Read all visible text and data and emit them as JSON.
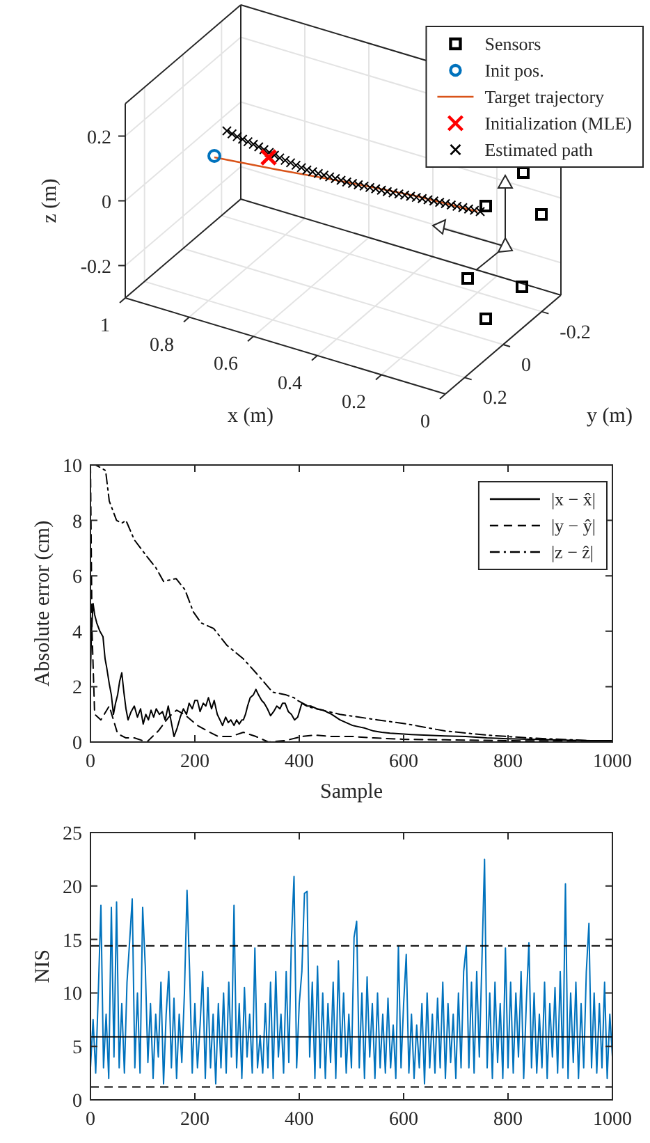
{
  "chart_data": [
    {
      "type": "other",
      "xlabel": "x (m)",
      "ylabel": "z (m)",
      "x2label": "y (m)",
      "legend": "top right",
      "annotations": [
        "1",
        "0.8",
        "0.6",
        "0.4",
        "0.2",
        "0",
        "0.2",
        "0",
        "-0.2",
        "-0.2",
        "0",
        "0.2"
      ],
      "series": [
        {
          "name": "Sensors",
          "color": "#000000",
          "type": "scatter",
          "marker": "square"
        },
        {
          "name": "Init pos.",
          "color": "#0072bd",
          "type": "scatter",
          "marker": "circle"
        },
        {
          "name": "Target trajectory",
          "color": "#d95319",
          "type": "line"
        },
        {
          "name": "Initialization (MLE)",
          "color": "#ff0000",
          "type": "scatter",
          "marker": "cross"
        },
        {
          "name": "Estimated path",
          "color": "#000000",
          "type": "scatter",
          "marker": "cross"
        }
      ]
    },
    {
      "type": "line",
      "xlabel": "Sample",
      "ylabel": "Absolute error (cm)",
      "xlim": [
        0,
        1000
      ],
      "xticks": [
        0,
        200,
        400,
        600,
        800,
        1000
      ],
      "ylim": [
        0,
        10
      ],
      "yticks": [
        0,
        2,
        4,
        6,
        8,
        10
      ],
      "legend": "top right",
      "series": [
        {
          "name": "|x − x̂|",
          "color": "#000000",
          "line_style": "solid",
          "x": [
            0,
            2,
            5,
            8,
            12,
            18,
            24,
            28,
            31,
            36,
            40,
            44,
            48,
            52,
            56,
            60,
            64,
            68,
            72,
            78,
            84,
            90,
            96,
            101,
            106,
            111,
            116,
            121,
            126,
            132,
            138,
            143,
            149,
            155,
            160,
            166,
            172,
            178,
            184,
            189,
            195,
            200,
            205,
            210,
            216,
            221,
            226,
            232,
            237,
            243,
            248,
            253,
            259,
            264,
            269,
            275,
            280,
            285,
            290,
            293,
            297,
            301,
            306,
            312,
            317,
            322,
            328,
            333,
            339,
            345,
            351,
            357,
            363,
            368,
            373,
            379,
            385,
            391,
            397,
            405,
            414,
            422,
            434,
            446,
            462,
            478,
            490,
            502,
            514,
            526,
            542,
            558,
            574,
            590,
            615,
            639,
            679,
            719,
            759,
            799,
            840,
            880,
            920,
            960,
            1000
          ],
          "values": [
            2.5,
            4.0,
            5.0,
            4.6,
            4.3,
            4.0,
            3.8,
            3.0,
            2.7,
            2.1,
            1.7,
            1.0,
            1.4,
            1.7,
            2.2,
            2.5,
            1.8,
            1.2,
            0.8,
            1.1,
            1.3,
            0.9,
            1.2,
            0.65,
            1.0,
            0.8,
            1.15,
            0.9,
            1.2,
            1.0,
            1.1,
            0.8,
            1.3,
            0.7,
            0.2,
            0.5,
            0.9,
            1.2,
            1.0,
            1.4,
            1.2,
            1.5,
            1.5,
            1.1,
            1.4,
            1.3,
            1.6,
            1.2,
            1.5,
            1.0,
            0.8,
            0.6,
            0.9,
            0.7,
            0.8,
            0.6,
            0.8,
            0.65,
            0.8,
            0.8,
            1.0,
            1.3,
            1.6,
            1.7,
            1.9,
            1.7,
            1.5,
            1.4,
            1.2,
            0.95,
            1.1,
            1.3,
            1.2,
            1.4,
            1.4,
            1.1,
            1.0,
            0.8,
            0.9,
            1.4,
            1.3,
            1.3,
            1.2,
            1.15,
            1.0,
            0.8,
            0.7,
            0.6,
            0.55,
            0.5,
            0.4,
            0.35,
            0.32,
            0.3,
            0.27,
            0.25,
            0.22,
            0.2,
            0.15,
            0.12,
            0.1,
            0.08,
            0.06,
            0.05,
            0.05
          ]
        },
        {
          "name": "|y − ŷ|",
          "color": "#000000",
          "line_style": "dashed",
          "x": [
            0,
            3,
            8,
            20,
            36,
            44,
            52,
            68,
            84,
            108,
            130,
            150,
            165,
            180,
            205,
            229,
            245,
            269,
            293,
            317,
            341,
            373,
            405,
            429,
            462,
            502,
            542,
            598,
            679,
            799,
            960,
            1000
          ],
          "values": [
            10,
            4,
            1.0,
            0.8,
            1.3,
            0.8,
            0.3,
            0.15,
            0.15,
            0.0,
            0.4,
            0.9,
            1.15,
            1.0,
            0.6,
            0.35,
            0.2,
            0.2,
            0.35,
            0.2,
            0.0,
            0.05,
            0.2,
            0.25,
            0.2,
            0.2,
            0.15,
            0.1,
            0.08,
            0.05,
            0.03,
            0.03
          ]
        },
        {
          "name": "|z − ẑ|",
          "color": "#000000",
          "line_style": "dashdot",
          "x": [
            0,
            10,
            20,
            29,
            36,
            50,
            60,
            68,
            84,
            108,
            125,
            140,
            164,
            181,
            197,
            212,
            236,
            261,
            293,
            317,
            349,
            375,
            390,
            397,
            422,
            478,
            550,
            607,
            679,
            759,
            839,
            959,
            1000
          ],
          "values": [
            10,
            10,
            9.9,
            9.8,
            8.7,
            8.0,
            7.9,
            8.0,
            7.3,
            6.7,
            6.3,
            5.8,
            5.9,
            5.5,
            4.7,
            4.3,
            4.1,
            3.5,
            3.0,
            2.5,
            1.8,
            1.7,
            1.6,
            1.5,
            1.25,
            1.0,
            0.8,
            0.65,
            0.4,
            0.25,
            0.15,
            0.05,
            0.05
          ]
        }
      ]
    },
    {
      "type": "line",
      "ylabel": "NIS",
      "xlim": [
        0,
        1000
      ],
      "xticks": [
        0,
        200,
        400,
        600,
        800,
        1000
      ],
      "ylim": [
        0,
        25
      ],
      "yticks": [
        0,
        5,
        10,
        15,
        20,
        25
      ],
      "series": [
        {
          "color": "#0072bd",
          "x": [
            0,
            5,
            10,
            15,
            20,
            25,
            30,
            35,
            40,
            45,
            50,
            55,
            60,
            65,
            70,
            75,
            80,
            85,
            90,
            95,
            100,
            105,
            110,
            115,
            120,
            125,
            130,
            135,
            140,
            145,
            150,
            155,
            160,
            165,
            170,
            175,
            180,
            185,
            190,
            195,
            200,
            205,
            210,
            215,
            220,
            225,
            230,
            235,
            240,
            245,
            250,
            255,
            260,
            265,
            270,
            275,
            280,
            285,
            290,
            295,
            300,
            305,
            310,
            315,
            320,
            325,
            330,
            335,
            340,
            345,
            350,
            355,
            360,
            365,
            370,
            375,
            380,
            385,
            390,
            395,
            400,
            405,
            410,
            415,
            420,
            425,
            430,
            435,
            440,
            445,
            450,
            455,
            460,
            465,
            470,
            475,
            480,
            485,
            490,
            495,
            500,
            505,
            510,
            515,
            520,
            525,
            530,
            535,
            540,
            545,
            550,
            555,
            560,
            565,
            570,
            575,
            580,
            585,
            590,
            595,
            600,
            605,
            610,
            615,
            620,
            625,
            630,
            635,
            640,
            645,
            650,
            655,
            660,
            665,
            670,
            675,
            680,
            685,
            690,
            695,
            700,
            705,
            710,
            715,
            720,
            725,
            730,
            735,
            740,
            745,
            750,
            755,
            760,
            765,
            770,
            775,
            780,
            785,
            790,
            795,
            800,
            805,
            810,
            815,
            820,
            825,
            830,
            835,
            840,
            845,
            850,
            855,
            860,
            865,
            870,
            875,
            880,
            885,
            890,
            895,
            900,
            905,
            910,
            915,
            920,
            925,
            930,
            935,
            940,
            945,
            950,
            955,
            960,
            965,
            970,
            975,
            980,
            985,
            990,
            995,
            1000
          ],
          "values": [
            3,
            7.5,
            2.5,
            10,
            18.2,
            3,
            8,
            2,
            18.0,
            4,
            18.5,
            3,
            9,
            2.5,
            11,
            14.8,
            18.8,
            3,
            10,
            2.5,
            18.0,
            12.5,
            3.5,
            9,
            2,
            8,
            4,
            11,
            1.5,
            8,
            12,
            3,
            9.5,
            2,
            8,
            3.5,
            10,
            19.6,
            12,
            2.5,
            9,
            3,
            7,
            12,
            2,
            10.5,
            3,
            8,
            1.5,
            9,
            3,
            10,
            2.5,
            11,
            4,
            18.2,
            3,
            9,
            2,
            10.5,
            4,
            8,
            2.5,
            14.2,
            3,
            6,
            2.5,
            9,
            3,
            11,
            2,
            12,
            4,
            8,
            2.5,
            12,
            3.5,
            15,
            20.9,
            3,
            9,
            12,
            19.3,
            19.5,
            4,
            11,
            2,
            12.5,
            3,
            10,
            2,
            9,
            3.5,
            11,
            2,
            13,
            4,
            10,
            2.5,
            8,
            3,
            15.2,
            16.7,
            3,
            10,
            2,
            11.5,
            4,
            9,
            2,
            10,
            3,
            8,
            2.5,
            9.5,
            3,
            7,
            2,
            14.4,
            3,
            9,
            13.6,
            2.5,
            8,
            2,
            7,
            3,
            9,
            1.5,
            10,
            3,
            8,
            2.5,
            9.5,
            3,
            11,
            2,
            9,
            3.5,
            8,
            2,
            10,
            3,
            12,
            14.4,
            3,
            11,
            2.5,
            12,
            4,
            13,
            22.5,
            3,
            10,
            2,
            11,
            3.5,
            9,
            2,
            14.2,
            3,
            11,
            2.5,
            10,
            4,
            12,
            2,
            9,
            14.7,
            3,
            10,
            2.5,
            8,
            3,
            11,
            2,
            9,
            4,
            10.5,
            2.5,
            12,
            3,
            20.2,
            2,
            10,
            3.5,
            11,
            2,
            9,
            3,
            12,
            16.5,
            3,
            10,
            2.5,
            9,
            3,
            11,
            2,
            8,
            4
          ]
        }
      ],
      "ref_lines": [
        {
          "axis": "y",
          "value": 14.4,
          "line_style": "dashed",
          "color": "#000000"
        },
        {
          "axis": "y",
          "value": 5.9,
          "line_style": "solid",
          "color": "#000000"
        },
        {
          "axis": "y",
          "value": 1.2,
          "line_style": "dashed",
          "color": "#000000"
        }
      ]
    }
  ]
}
